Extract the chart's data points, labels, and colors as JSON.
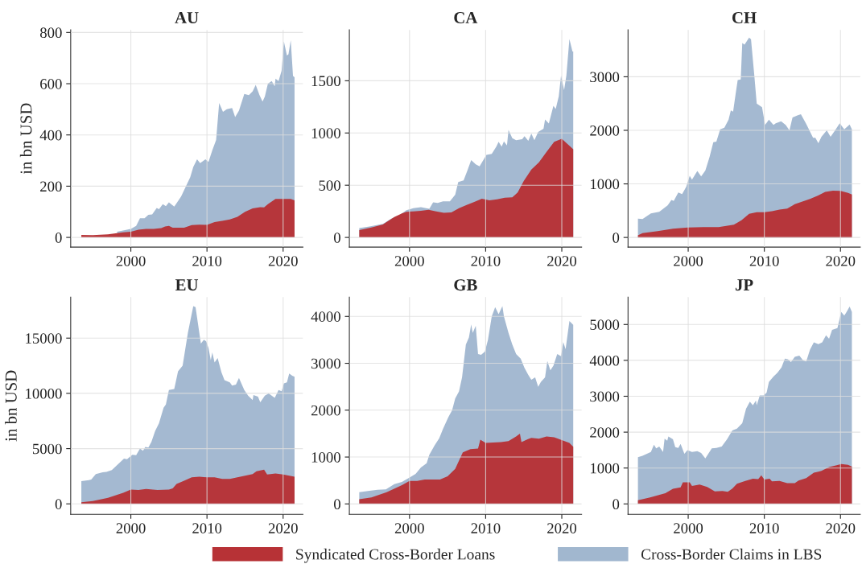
{
  "chart_data": [
    {
      "type": "area",
      "title": "AU",
      "ylabel": "in bn USD",
      "xlim": [
        1992.1,
        2022.6
      ],
      "xticks": [
        2000,
        2010,
        2020
      ],
      "ylim": [
        -38,
        810
      ],
      "yticks": [
        0,
        200,
        400,
        600,
        800
      ],
      "grid": true,
      "legend": "bottom",
      "series": [
        {
          "name": "Cross-Border Claims in LBS",
          "color": "#a1b7cf",
          "x": [
            1998.2,
            1999.1,
            2000.0,
            2000.7,
            2001.2,
            2001.8,
            2002.3,
            2002.8,
            2003.4,
            2003.7,
            2004.2,
            2004.6,
            2005.0,
            2005.7,
            2006.6,
            2007.8,
            2008.2,
            2008.7,
            2009.1,
            2009.8,
            2010.2,
            2010.7,
            2011.2,
            2011.6,
            2012.1,
            2012.6,
            2013.3,
            2013.7,
            2014.2,
            2014.9,
            2015.5,
            2016.0,
            2016.4,
            2016.9,
            2017.3,
            2017.6,
            2018.0,
            2018.5,
            2018.9,
            2019.0,
            2019.4,
            2019.8,
            2020.1,
            2020.5,
            2020.7,
            2021.0,
            2021.3,
            2021.5
          ],
          "values": [
            22,
            28,
            33,
            45,
            75,
            75,
            88,
            90,
            115,
            110,
            130,
            122,
            137,
            120,
            160,
            235,
            275,
            305,
            290,
            305,
            295,
            340,
            380,
            525,
            490,
            500,
            505,
            470,
            495,
            560,
            555,
            570,
            595,
            555,
            530,
            550,
            600,
            610,
            590,
            620,
            610,
            650,
            765,
            710,
            715,
            770,
            630,
            625
          ]
        },
        {
          "name": "Syndicated Cross-Border Loans",
          "color": "#b73236",
          "x": [
            1993.5,
            1995,
            1997,
            1999,
            2000,
            2001,
            2002,
            2003,
            2004,
            2004.5,
            2005,
            2005.5,
            2007,
            2008,
            2009,
            2010,
            2011,
            2012,
            2013,
            2014,
            2015,
            2016,
            2017,
            2017.5,
            2018,
            2019,
            2020,
            2021,
            2021.5
          ],
          "values": [
            10,
            9,
            12,
            20,
            22,
            30,
            33,
            33,
            36,
            43,
            45,
            38,
            38,
            48,
            50,
            49,
            60,
            65,
            70,
            80,
            100,
            113,
            118,
            117,
            130,
            150,
            150,
            150,
            145
          ]
        }
      ]
    },
    {
      "type": "area",
      "title": "CA",
      "xlim": [
        1992.1,
        2022.6
      ],
      "xticks": [
        2000,
        2010,
        2020
      ],
      "ylim": [
        -93,
        1987
      ],
      "yticks": [
        0,
        500,
        1000,
        1500
      ],
      "grid": true,
      "legend": "bottom",
      "series": [
        {
          "name": "Cross-Border Claims in LBS",
          "color": "#a1b7cf",
          "x": [
            1993.4,
            1994.75,
            1996.5,
            1997.6,
            1998.7,
            1999.6,
            2000.5,
            2001.5,
            2002.6,
            2003.1,
            2003.7,
            2004.4,
            2005.3,
            2006.0,
            2006.4,
            2007.1,
            2007.6,
            2008.1,
            2008.7,
            2009.2,
            2010.1,
            2010.8,
            2011.4,
            2011.7,
            2012.1,
            2012.4,
            2012.8,
            2013.0,
            2013.5,
            2014.0,
            2014.8,
            2015.1,
            2015.6,
            2016.0,
            2016.4,
            2016.9,
            2017.6,
            2017.8,
            2018.3,
            2018.9,
            2019.2,
            2019.6,
            2019.9,
            2020.3,
            2020.6,
            2021.0,
            2021.4,
            2021.5
          ],
          "values": [
            90,
            105,
            130,
            180,
            215,
            260,
            280,
            290,
            275,
            335,
            330,
            345,
            345,
            410,
            530,
            545,
            640,
            740,
            700,
            680,
            790,
            800,
            870,
            915,
            870,
            920,
            880,
            1030,
            950,
            930,
            940,
            970,
            925,
            995,
            930,
            1010,
            1040,
            1130,
            1090,
            1260,
            1230,
            1350,
            1550,
            1410,
            1550,
            1900,
            1780,
            1780
          ]
        },
        {
          "name": "Syndicated Cross-Border Loans",
          "color": "#b73236",
          "x": [
            1993.4,
            1995,
            1996.5,
            1998,
            1999,
            1999.6,
            2000.5,
            2001.5,
            2002.5,
            2003.5,
            2004.5,
            2005.5,
            2006.5,
            2007.5,
            2008.5,
            2009.5,
            2010.5,
            2011.5,
            2012.5,
            2013.5,
            2014.2,
            2015,
            2016,
            2017,
            2018,
            2019,
            2020,
            2021.5
          ],
          "values": [
            70,
            95,
            125,
            195,
            230,
            245,
            250,
            255,
            265,
            250,
            235,
            240,
            280,
            310,
            340,
            370,
            355,
            365,
            380,
            385,
            430,
            540,
            650,
            720,
            820,
            915,
            945,
            845
          ]
        }
      ]
    },
    {
      "type": "area",
      "title": "CH",
      "xlim": [
        1992.1,
        2022.6
      ],
      "xticks": [
        2000,
        2010,
        2020
      ],
      "ylim": [
        -181,
        3875
      ],
      "yticks": [
        0,
        1000,
        2000,
        3000
      ],
      "grid": true,
      "legend": "bottom",
      "series": [
        {
          "name": "Cross-Border Claims in LBS",
          "color": "#a1b7cf",
          "x": [
            1993.4,
            1994.0,
            1995.1,
            1996.2,
            1997.3,
            1997.8,
            1998.1,
            1998.7,
            1999.2,
            1999.75,
            2000.2,
            2000.5,
            2001.2,
            2001.7,
            2002.25,
            2002.8,
            2003.3,
            2003.7,
            2004.2,
            2004.75,
            2005.3,
            2005.6,
            2005.9,
            2006.2,
            2006.5,
            2006.9,
            2007.1,
            2007.4,
            2008.0,
            2008.25,
            2008.7,
            2009.0,
            2009.7,
            2010.1,
            2010.6,
            2011.2,
            2011.5,
            2012.2,
            2012.8,
            2013.3,
            2013.7,
            2014.4,
            2014.8,
            2015.5,
            2016.4,
            2016.7,
            2017.1,
            2017.5,
            2018.2,
            2018.7,
            2019.2,
            2019.9,
            2020.5,
            2021.2,
            2021.5
          ],
          "values": [
            350,
            345,
            450,
            480,
            600,
            700,
            680,
            840,
            810,
            950,
            1150,
            1080,
            1240,
            1140,
            1250,
            1500,
            1780,
            1790,
            2020,
            2050,
            2200,
            2370,
            2350,
            2650,
            2940,
            2950,
            3630,
            3600,
            3730,
            3700,
            3000,
            2500,
            2430,
            2100,
            2200,
            2100,
            2130,
            2170,
            2100,
            2000,
            2240,
            2280,
            2300,
            2120,
            1860,
            1860,
            1760,
            1880,
            2000,
            1880,
            1980,
            2130,
            2020,
            2110,
            2020
          ]
        },
        {
          "name": "Syndicated Cross-Border Loans",
          "color": "#b73236",
          "x": [
            1993.4,
            1994,
            1996,
            1998,
            2000,
            2002,
            2004,
            2006,
            2007,
            2008,
            2009,
            2010,
            2011,
            2012,
            2013,
            2014,
            2015,
            2016,
            2017,
            2018,
            2019,
            2020,
            2021,
            2021.5
          ],
          "values": [
            40,
            80,
            120,
            165,
            185,
            195,
            195,
            240,
            320,
            440,
            470,
            470,
            490,
            520,
            540,
            620,
            670,
            720,
            780,
            850,
            875,
            870,
            830,
            800
          ]
        }
      ]
    },
    {
      "type": "area",
      "title": "EU",
      "ylabel": "in bn USD",
      "xlim": [
        1992.1,
        2022.6
      ],
      "xticks": [
        2000,
        2010,
        2020
      ],
      "ylim": [
        -950,
        18710
      ],
      "yticks": [
        0,
        5000,
        10000,
        15000
      ],
      "grid": true,
      "legend": "bottom",
      "series": [
        {
          "name": "Cross-Border Claims in LBS",
          "color": "#a1b7cf",
          "x": [
            1993.5,
            1994.5,
            1994.8,
            1995.4,
            1996.3,
            1996.8,
            1997.5,
            1998.4,
            1999.1,
            1999.5,
            2000.2,
            2000.7,
            2001.2,
            2001.6,
            2001.9,
            2002.3,
            2002.7,
            2003.2,
            2003.7,
            2004.3,
            2004.6,
            2005.0,
            2005.7,
            2006.2,
            2006.8,
            2007.5,
            2008.2,
            2008.5,
            2009.2,
            2009.6,
            2009.9,
            2010.2,
            2010.5,
            2010.7,
            2011.0,
            2011.4,
            2011.9,
            2012.3,
            2013.0,
            2013.3,
            2013.8,
            2014.2,
            2014.9,
            2015.4,
            2016.0,
            2016.1,
            2016.7,
            2017.0,
            2017.6,
            2018.1,
            2018.9,
            2019.4,
            2019.8,
            2020.1,
            2020.5,
            2020.8,
            2021.2,
            2021.5
          ],
          "values": [
            2050,
            2150,
            2200,
            2700,
            2850,
            2900,
            3050,
            3650,
            4100,
            4050,
            4450,
            4400,
            5000,
            4800,
            5150,
            5100,
            5600,
            6600,
            7300,
            8700,
            9000,
            10300,
            10400,
            12000,
            12500,
            15500,
            17900,
            17800,
            14500,
            14850,
            14700,
            14100,
            13000,
            13700,
            12800,
            13200,
            11900,
            11200,
            11000,
            10700,
            10800,
            11400,
            10300,
            9800,
            9400,
            9850,
            9700,
            9200,
            9800,
            10000,
            9600,
            10300,
            10200,
            10900,
            11000,
            11800,
            11600,
            11500
          ]
        },
        {
          "name": "Syndicated Cross-Border Loans",
          "color": "#b73236",
          "x": [
            1993.5,
            1995,
            1997,
            1999,
            2000,
            2001,
            2002,
            2003.5,
            2005,
            2005.5,
            2006,
            2007,
            2008,
            2009,
            2010,
            2011,
            2012,
            2013,
            2014,
            2015,
            2016,
            2016.5,
            2017.5,
            2017.9,
            2019,
            2020,
            2021.5
          ],
          "values": [
            150,
            250,
            550,
            1000,
            1300,
            1250,
            1350,
            1250,
            1300,
            1400,
            1800,
            2100,
            2400,
            2450,
            2400,
            2400,
            2250,
            2250,
            2400,
            2550,
            2700,
            2950,
            3100,
            2650,
            2750,
            2650,
            2450
          ]
        }
      ]
    },
    {
      "type": "area",
      "title": "GB",
      "xlim": [
        1992.1,
        2022.6
      ],
      "xticks": [
        2000,
        2010,
        2020
      ],
      "ylim": [
        -223,
        4412
      ],
      "yticks": [
        0,
        1000,
        2000,
        3000,
        4000
      ],
      "grid": true,
      "legend": "bottom",
      "series": [
        {
          "name": "Cross-Border Claims in LBS",
          "color": "#a1b7cf",
          "x": [
            1993.4,
            1994.75,
            1995.8,
            1996.9,
            1998.0,
            1999.0,
            2000.1,
            2000.8,
            2001.5,
            2002.25,
            2002.6,
            2003.3,
            2003.9,
            2004.4,
            2005.1,
            2005.6,
            2006.0,
            2006.5,
            2006.9,
            2007.4,
            2007.8,
            2008.1,
            2008.3,
            2008.7,
            2009.0,
            2009.4,
            2009.9,
            2010.3,
            2010.8,
            2011.25,
            2011.7,
            2012.2,
            2012.4,
            2013.0,
            2013.5,
            2014.0,
            2014.6,
            2015.1,
            2015.6,
            2016.0,
            2016.5,
            2016.9,
            2017.25,
            2017.8,
            2018.1,
            2018.5,
            2018.9,
            2019.4,
            2019.9,
            2020.2,
            2020.5,
            2021.0,
            2021.5
          ],
          "values": [
            250,
            280,
            300,
            310,
            420,
            470,
            570,
            640,
            780,
            870,
            1050,
            1250,
            1400,
            1600,
            1850,
            2000,
            2250,
            2400,
            2700,
            3400,
            3550,
            3830,
            3650,
            3800,
            3200,
            3180,
            3250,
            3500,
            4000,
            4200,
            4050,
            4220,
            4000,
            3650,
            3400,
            3200,
            3100,
            2900,
            2750,
            2650,
            2700,
            2500,
            2600,
            2700,
            3050,
            2850,
            2950,
            3200,
            3150,
            3450,
            3300,
            3900,
            3820
          ]
        },
        {
          "name": "Syndicated Cross-Border Loans",
          "color": "#b73236",
          "x": [
            1993.4,
            1995,
            1997,
            1999,
            2000,
            2001,
            2002,
            2004,
            2005,
            2006,
            2007,
            2008,
            2009.0,
            2009.3,
            2010,
            2011,
            2012,
            2013,
            2014,
            2014.5,
            2014.7,
            2015.5,
            2016,
            2017,
            2018,
            2019,
            2020,
            2021,
            2021.5
          ],
          "values": [
            100,
            140,
            250,
            400,
            490,
            490,
            520,
            520,
            590,
            750,
            1100,
            1170,
            1180,
            1370,
            1300,
            1310,
            1320,
            1340,
            1440,
            1500,
            1320,
            1380,
            1410,
            1390,
            1440,
            1420,
            1360,
            1300,
            1220
          ]
        }
      ]
    },
    {
      "type": "area",
      "title": "JP",
      "xlim": [
        1992.1,
        2022.6
      ],
      "xticks": [
        2000,
        2010,
        2020
      ],
      "ylim": [
        -291,
        5762
      ],
      "yticks": [
        0,
        1000,
        2000,
        3000,
        4000,
        5000
      ],
      "grid": true,
      "legend": "bottom",
      "series": [
        {
          "name": "Cross-Border Claims in LBS",
          "color": "#a1b7cf",
          "x": [
            1993.4,
            1994.0,
            1995.1,
            1995.5,
            1995.8,
            1996.2,
            1996.7,
            1996.9,
            1997.25,
            1997.4,
            1998.0,
            1998.3,
            1998.7,
            1999.0,
            1999.5,
            1999.9,
            2000.5,
            2001.2,
            2001.7,
            2002.25,
            2003.1,
            2003.7,
            2004.4,
            2005.1,
            2005.8,
            2006.4,
            2007.1,
            2007.6,
            2008.1,
            2008.5,
            2008.9,
            2009.0,
            2009.4,
            2009.9,
            2010.3,
            2010.6,
            2011.2,
            2011.7,
            2012.25,
            2012.7,
            2013.1,
            2013.5,
            2014.0,
            2014.6,
            2015.1,
            2015.5,
            2016.0,
            2016.5,
            2017.1,
            2017.6,
            2018.1,
            2018.5,
            2018.9,
            2019.6,
            2020.1,
            2020.5,
            2020.8,
            2021.2,
            2021.5
          ],
          "values": [
            1300,
            1340,
            1450,
            1650,
            1550,
            1600,
            1450,
            1820,
            1760,
            1880,
            1800,
            1580,
            1560,
            1670,
            1400,
            1500,
            1450,
            1470,
            1420,
            1270,
            1550,
            1560,
            1600,
            1800,
            2050,
            2100,
            2250,
            2650,
            2850,
            2750,
            2880,
            2750,
            3020,
            3020,
            3100,
            3400,
            3550,
            3650,
            3800,
            4050,
            4030,
            3950,
            4100,
            4130,
            4000,
            3970,
            4300,
            4500,
            4450,
            4500,
            4700,
            4600,
            4850,
            4900,
            5350,
            5250,
            5350,
            5500,
            5350
          ]
        },
        {
          "name": "Syndicated Cross-Border Loans",
          "color": "#b73236",
          "x": [
            1993.4,
            1995,
            1997,
            1998,
            1999,
            1999.3,
            2000.2,
            2000.5,
            2001.5,
            2002.5,
            2003.5,
            2004.5,
            2005.2,
            2005.8,
            2006.4,
            2007.5,
            2008.5,
            2009.2,
            2009.6,
            2010,
            2010.7,
            2011,
            2012,
            2013,
            2014,
            2014.5,
            2015.5,
            2016.5,
            2017.5,
            2018.5,
            2019.5,
            2020.1,
            2021,
            2021.5
          ],
          "values": [
            100,
            180,
            300,
            420,
            460,
            600,
            600,
            500,
            540,
            470,
            350,
            360,
            340,
            430,
            560,
            640,
            700,
            690,
            800,
            680,
            700,
            630,
            640,
            580,
            580,
            650,
            720,
            870,
            920,
            1030,
            1080,
            1110,
            1090,
            1040
          ]
        }
      ]
    }
  ]
}
